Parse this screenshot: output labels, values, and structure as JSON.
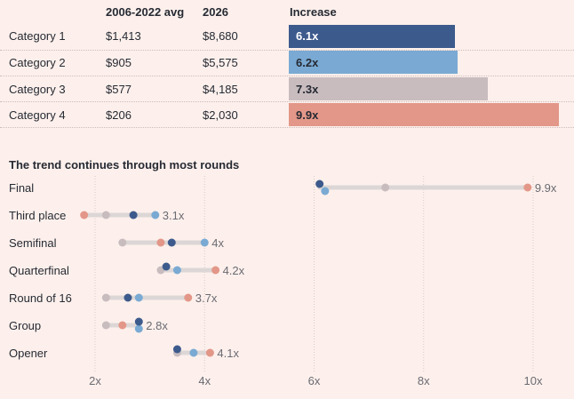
{
  "table": {
    "headers": {
      "avg": "2006-2022 avg",
      "y2026": "2026",
      "increase": "Increase"
    },
    "rows": [
      {
        "label": "Category 1",
        "avg": "$1,413",
        "y2026": "$8,680",
        "increase_label": "6.1x",
        "increase": 6.1,
        "color": "#3d5a8c",
        "text_color": "#ffffff"
      },
      {
        "label": "Category 2",
        "avg": "$905",
        "y2026": "$5,575",
        "increase_label": "6.2x",
        "increase": 6.2,
        "color": "#7aaad3",
        "text_color": "#262a33"
      },
      {
        "label": "Category 3",
        "avg": "$577",
        "y2026": "$4,185",
        "increase_label": "7.3x",
        "increase": 7.3,
        "color": "#c8bcbf",
        "text_color": "#262a33"
      },
      {
        "label": "Category 4",
        "avg": "$206",
        "y2026": "$2,030",
        "increase_label": "9.9x",
        "increase": 9.9,
        "color": "#e39788",
        "text_color": "#262a33"
      }
    ]
  },
  "chart_data": {
    "type": "scatter",
    "title": "The trend continues through most rounds",
    "categories": [
      "Final",
      "Third place",
      "Semifinal",
      "Quarterfinal",
      "Round of 16",
      "Group",
      "Opener"
    ],
    "series": [
      {
        "name": "Category 1",
        "color": "#3d5a8c",
        "values": [
          6.1,
          2.7,
          3.4,
          3.3,
          2.6,
          2.8,
          3.5
        ]
      },
      {
        "name": "Category 2",
        "color": "#7aaad3",
        "values": [
          6.2,
          3.1,
          4.0,
          3.5,
          2.8,
          2.8,
          3.8
        ]
      },
      {
        "name": "Category 3",
        "color": "#c8bcbf",
        "values": [
          7.3,
          2.2,
          2.5,
          3.2,
          2.2,
          2.2,
          3.5
        ]
      },
      {
        "name": "Category 4",
        "color": "#e39788",
        "values": [
          9.9,
          1.8,
          3.2,
          4.2,
          3.7,
          2.5,
          4.1
        ]
      }
    ],
    "max_labels": [
      "9.9x",
      "3.1x",
      "4x",
      "4.2x",
      "3.7x",
      "2.8x",
      "4.1x"
    ],
    "x_ticks": [
      2,
      4,
      6,
      8,
      10
    ],
    "x_tick_labels": [
      "2x",
      "4x",
      "6x",
      "8x",
      "10x"
    ],
    "xlim": [
      1.44,
      10.6
    ],
    "ylabel": "",
    "xlabel": ""
  }
}
